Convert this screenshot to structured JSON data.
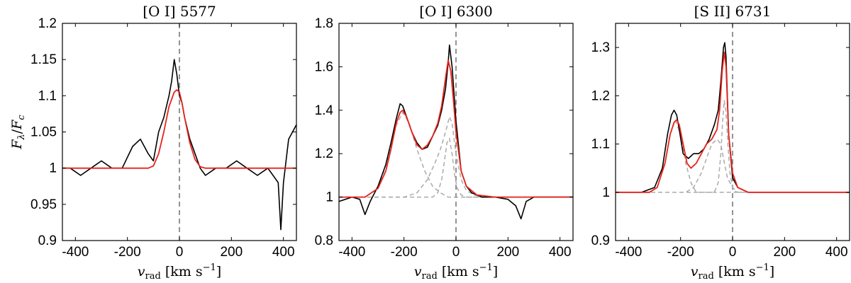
{
  "chart_data": [
    {
      "type": "line",
      "title": "[O I] 5577",
      "ylabel": "F_λ/F_c",
      "xlabel": "v_rad [km s⁻¹]",
      "xlim": [
        -450,
        450
      ],
      "ylim": [
        0.9,
        1.2
      ],
      "xticks": [
        -400,
        -200,
        0,
        200,
        400
      ],
      "xtick_labels": [
        "-400",
        "-200",
        "0",
        "200",
        "400"
      ],
      "yticks": [
        0.9,
        0.95,
        1.0,
        1.05,
        1.1,
        1.15,
        1.2
      ],
      "ytick_labels": [
        "0.9",
        "0.95",
        "1",
        "1.05",
        "1.1",
        "1.15",
        "1.2"
      ],
      "grid": false,
      "vline_x": 0,
      "series": [
        {
          "role": "observed",
          "color": "#000000",
          "x": [
            -450,
            -420,
            -380,
            -340,
            -300,
            -260,
            -220,
            -180,
            -150,
            -120,
            -100,
            -80,
            -60,
            -40,
            -30,
            -20,
            -10,
            0,
            10,
            20,
            40,
            60,
            80,
            100,
            140,
            180,
            220,
            260,
            300,
            340,
            380,
            390,
            400,
            420,
            450
          ],
          "y": [
            1.0,
            1.0,
            0.99,
            1.0,
            1.01,
            1.0,
            1.0,
            1.03,
            1.04,
            1.02,
            1.01,
            1.05,
            1.07,
            1.1,
            1.12,
            1.15,
            1.13,
            1.1,
            1.09,
            1.07,
            1.04,
            1.02,
            1.0,
            0.99,
            1.0,
            1.0,
            1.01,
            1.0,
            0.99,
            1.0,
            0.98,
            0.915,
            0.98,
            1.04,
            1.06
          ]
        },
        {
          "role": "fit",
          "color": "#e8231b",
          "x": [
            -450,
            -200,
            -120,
            -100,
            -80,
            -60,
            -40,
            -20,
            -10,
            0,
            10,
            20,
            40,
            60,
            80,
            100,
            450
          ],
          "y": [
            1.0,
            1.0,
            1.0,
            1.003,
            1.02,
            1.05,
            1.085,
            1.105,
            1.108,
            1.105,
            1.09,
            1.07,
            1.035,
            1.012,
            1.002,
            1.0,
            1.0
          ]
        }
      ]
    },
    {
      "type": "line",
      "title": "[O I] 6300",
      "xlabel": "v_rad [km s⁻¹]",
      "xlim": [
        -450,
        450
      ],
      "ylim": [
        0.8,
        1.8
      ],
      "xticks": [
        -400,
        -200,
        0,
        200,
        400
      ],
      "xtick_labels": [
        "-400",
        "-200",
        "0",
        "200",
        "400"
      ],
      "yticks": [
        0.8,
        1.0,
        1.2,
        1.4,
        1.6,
        1.8
      ],
      "ytick_labels": [
        "0.8",
        "1",
        "1.2",
        "1.4",
        "1.6",
        "1.8"
      ],
      "grid": false,
      "vline_x": 0,
      "series": [
        {
          "role": "observed",
          "color": "#000000",
          "x": [
            -450,
            -400,
            -370,
            -350,
            -330,
            -300,
            -270,
            -250,
            -230,
            -215,
            -205,
            -190,
            -170,
            -150,
            -130,
            -110,
            -90,
            -70,
            -55,
            -40,
            -30,
            -25,
            -15,
            0,
            20,
            40,
            60,
            100,
            150,
            200,
            230,
            250,
            270,
            300,
            350,
            400,
            450
          ],
          "y": [
            0.98,
            1.0,
            0.99,
            0.92,
            0.98,
            1.05,
            1.15,
            1.25,
            1.36,
            1.43,
            1.42,
            1.37,
            1.3,
            1.25,
            1.22,
            1.23,
            1.28,
            1.33,
            1.4,
            1.5,
            1.62,
            1.7,
            1.6,
            1.35,
            1.12,
            1.05,
            1.02,
            1.0,
            1.0,
            0.99,
            0.96,
            0.9,
            0.98,
            1.0,
            1.0,
            1.0,
            1.0
          ]
        },
        {
          "role": "fit",
          "color": "#e8231b",
          "x": [
            -450,
            -350,
            -300,
            -270,
            -250,
            -230,
            -215,
            -205,
            -190,
            -170,
            -150,
            -130,
            -110,
            -90,
            -70,
            -55,
            -40,
            -30,
            -20,
            -10,
            0,
            20,
            40,
            80,
            150,
            450
          ],
          "y": [
            1.0,
            1.0,
            1.04,
            1.12,
            1.22,
            1.34,
            1.39,
            1.4,
            1.37,
            1.3,
            1.24,
            1.22,
            1.24,
            1.28,
            1.34,
            1.42,
            1.55,
            1.63,
            1.58,
            1.45,
            1.3,
            1.12,
            1.05,
            1.01,
            1.0,
            1.0
          ]
        },
        {
          "role": "component",
          "color": "#aaaaaa",
          "dashed": true,
          "x": [
            -450,
            -350,
            -300,
            -260,
            -230,
            -205,
            -180,
            -150,
            -120,
            -90,
            -60,
            -30,
            0,
            450
          ],
          "y": [
            1.0,
            1.0,
            1.04,
            1.18,
            1.33,
            1.39,
            1.34,
            1.22,
            1.12,
            1.05,
            1.02,
            1.0,
            1.0,
            1.0
          ]
        },
        {
          "role": "component",
          "color": "#aaaaaa",
          "dashed": true,
          "x": [
            -450,
            -200,
            -150,
            -110,
            -80,
            -60,
            -40,
            -25,
            -15,
            0,
            20,
            40,
            70,
            100,
            450
          ],
          "y": [
            1.0,
            1.0,
            1.02,
            1.08,
            1.16,
            1.22,
            1.3,
            1.37,
            1.34,
            1.2,
            1.08,
            1.03,
            1.01,
            1.0,
            1.0
          ]
        },
        {
          "role": "component",
          "color": "#aaaaaa",
          "dashed": true,
          "x": [
            -450,
            -90,
            -70,
            -55,
            -45,
            -35,
            -25,
            -15,
            -5,
            5,
            20,
            40,
            450
          ],
          "y": [
            1.0,
            1.0,
            1.02,
            1.08,
            1.16,
            1.25,
            1.27,
            1.2,
            1.1,
            1.04,
            1.01,
            1.0,
            1.0
          ]
        }
      ]
    },
    {
      "type": "line",
      "title": "[S II] 6731",
      "xlabel": "v_rad [km s⁻¹]",
      "xlim": [
        -450,
        450
      ],
      "ylim": [
        0.9,
        1.35
      ],
      "xticks": [
        -400,
        -200,
        0,
        200,
        400
      ],
      "xtick_labels": [
        "-400",
        "-200",
        "0",
        "200",
        "400"
      ],
      "yticks": [
        0.9,
        1.0,
        1.1,
        1.2,
        1.3
      ],
      "ytick_labels": [
        "0.9",
        "1",
        "1.1",
        "1.2",
        "1.3"
      ],
      "grid": false,
      "vline_x": 0,
      "series": [
        {
          "role": "observed",
          "color": "#000000",
          "x": [
            -450,
            -400,
            -350,
            -300,
            -270,
            -250,
            -235,
            -225,
            -215,
            -205,
            -190,
            -170,
            -150,
            -130,
            -110,
            -90,
            -70,
            -55,
            -45,
            -35,
            -30,
            -25,
            -15,
            0,
            20,
            60,
            100,
            200,
            300,
            400,
            450
          ],
          "y": [
            1.0,
            1.0,
            1.0,
            1.01,
            1.05,
            1.12,
            1.16,
            1.17,
            1.16,
            1.13,
            1.08,
            1.07,
            1.08,
            1.08,
            1.09,
            1.11,
            1.14,
            1.17,
            1.23,
            1.3,
            1.31,
            1.28,
            1.12,
            1.03,
            1.01,
            1.0,
            1.0,
            1.0,
            1.0,
            1.0,
            1.0
          ]
        },
        {
          "role": "fit",
          "color": "#e8231b",
          "x": [
            -450,
            -320,
            -290,
            -260,
            -240,
            -225,
            -215,
            -205,
            -190,
            -175,
            -160,
            -140,
            -120,
            -100,
            -80,
            -60,
            -50,
            -40,
            -32,
            -25,
            -15,
            0,
            20,
            60,
            450
          ],
          "y": [
            1.0,
            1.0,
            1.01,
            1.06,
            1.12,
            1.145,
            1.15,
            1.14,
            1.1,
            1.06,
            1.05,
            1.06,
            1.08,
            1.1,
            1.11,
            1.13,
            1.17,
            1.25,
            1.29,
            1.26,
            1.12,
            1.04,
            1.01,
            1.0,
            1.0
          ]
        },
        {
          "role": "component",
          "color": "#aaaaaa",
          "dashed": true,
          "x": [
            -450,
            -320,
            -290,
            -260,
            -240,
            -220,
            -200,
            -180,
            -160,
            -140,
            -120,
            450
          ],
          "y": [
            1.0,
            1.0,
            1.01,
            1.06,
            1.12,
            1.15,
            1.12,
            1.06,
            1.02,
            1.0,
            1.0,
            1.0
          ]
        },
        {
          "role": "component",
          "color": "#aaaaaa",
          "dashed": true,
          "x": [
            -450,
            -180,
            -150,
            -120,
            -100,
            -80,
            -60,
            -45,
            -35,
            -20,
            0,
            20,
            450
          ],
          "y": [
            1.0,
            1.0,
            1.01,
            1.04,
            1.07,
            1.1,
            1.11,
            1.1,
            1.07,
            1.03,
            1.01,
            1.0,
            1.0
          ]
        },
        {
          "role": "component",
          "color": "#aaaaaa",
          "dashed": true,
          "x": [
            -450,
            -70,
            -55,
            -45,
            -38,
            -32,
            -26,
            -18,
            -10,
            0,
            15,
            450
          ],
          "y": [
            1.0,
            1.0,
            1.02,
            1.08,
            1.15,
            1.19,
            1.17,
            1.1,
            1.04,
            1.01,
            1.0,
            1.0
          ]
        }
      ]
    }
  ]
}
